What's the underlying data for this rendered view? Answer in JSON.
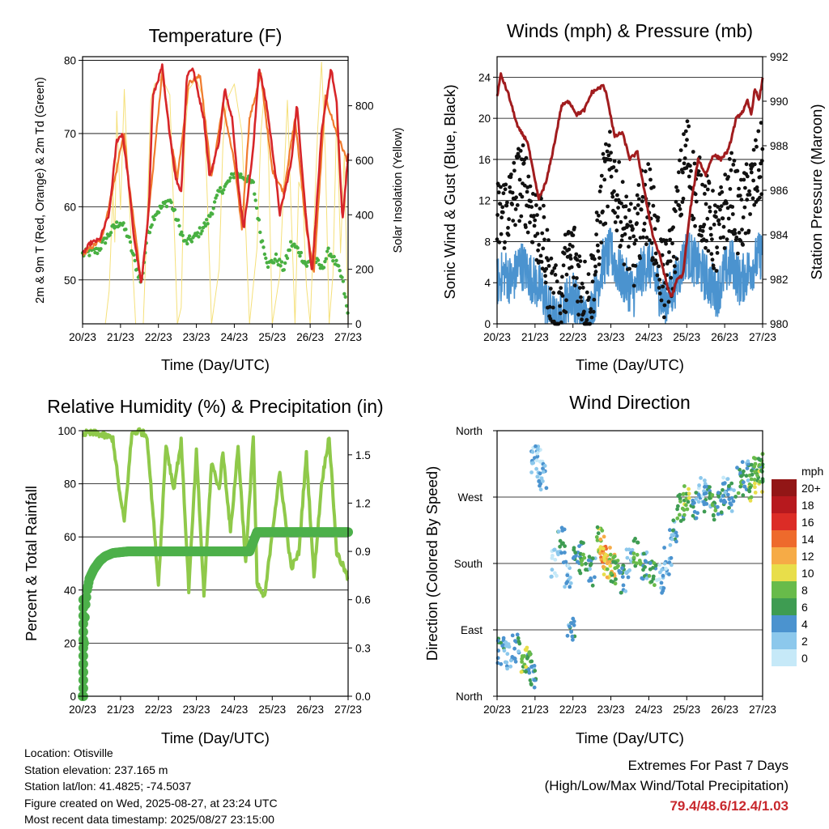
{
  "time_ticks": [
    "20/23",
    "21/23",
    "22/23",
    "23/23",
    "24/23",
    "25/23",
    "26/23",
    "27/23"
  ],
  "panels": {
    "temperature": {
      "title": "Temperature (F)",
      "xlabel": "Time (Day/UTC)",
      "ylabel": "2m & 9m T (Red, Orange) & 2m Td (Green)",
      "y2label": "Solar Insolation (Yellow)",
      "yticks": [
        "50",
        "60",
        "70",
        "80"
      ],
      "y2ticks": [
        "0",
        "200",
        "400",
        "600",
        "800"
      ]
    },
    "winds": {
      "title": "Winds (mph) & Pressure (mb)",
      "xlabel": "Time (Day/UTC)",
      "ylabel": "Sonic Wind & Gust (Blue, Black)",
      "y2label": "Station Pressure (Maroon)",
      "yticks": [
        "0",
        "4",
        "8",
        "12",
        "16",
        "20",
        "24"
      ],
      "y2ticks": [
        "980",
        "982",
        "984",
        "986",
        "988",
        "990",
        "992"
      ]
    },
    "humidity": {
      "title": "Relative Humidity (%) & Precipitation (in)",
      "xlabel": "Time (Day/UTC)",
      "ylabel": "Percent & Total Rainfall",
      "yticks": [
        "0",
        "20",
        "40",
        "60",
        "80",
        "100"
      ],
      "y2ticks": [
        "0.0",
        "0.3",
        "0.6",
        "0.9",
        "1.2",
        "1.5"
      ]
    },
    "direction": {
      "title": "Wind Direction",
      "xlabel": "Time (Day/UTC)",
      "ylabel": "Direction (Colored By Speed)",
      "yticks": [
        "North",
        "East",
        "South",
        "West",
        "North"
      ],
      "legend_title": "mph",
      "legend_labels": [
        "0",
        "2",
        "4",
        "6",
        "8",
        "10",
        "12",
        "14",
        "16",
        "18",
        "20+"
      ],
      "legend_colors": [
        "#c6e9f8",
        "#8cc8ec",
        "#4b93cf",
        "#3e9c52",
        "#68bb4a",
        "#e8de4a",
        "#f6ab46",
        "#ee6a2c",
        "#dc2c26",
        "#b7191e",
        "#921616"
      ]
    }
  },
  "info": {
    "location": "Location: Otisville",
    "elevation": "Station elevation: 237.165 m",
    "latlon": "Station lat/lon: 41.4825; -74.5037",
    "created": "Figure created on Wed, 2025-08-27, at 23:24 UTC",
    "recent": "Most recent data timestamp: 2025/08/27 23:15:00"
  },
  "extremes": {
    "title": "Extremes For Past 7 Days",
    "subtitle": "(High/Low/Max Wind/Total Precipitation)",
    "values": "79.4/48.6/12.4/1.03"
  },
  "chart_data": [
    {
      "type": "line",
      "title": "Temperature (F)",
      "xlabel": "Time (Day/UTC)",
      "ylabel": "2m & 9m T (Red, Orange) & 2m Td (Green)",
      "y2label": "Solar Insolation (Yellow)",
      "x_unit": "days since 20/23 UTC",
      "ylim": [
        44,
        80.5
      ],
      "y2lim": [
        0,
        980
      ],
      "series": [
        {
          "color": "#d7262a",
          "axis": "left",
          "x": [
            0,
            0.2,
            0.45,
            0.7,
            0.9,
            1.05,
            1.2,
            1.35,
            1.55,
            1.75,
            1.85,
            2.1,
            2.2,
            2.45,
            2.6,
            2.75,
            2.9,
            3.2,
            3.35,
            3.6,
            3.75,
            3.95,
            4.1,
            4.25,
            4.5,
            4.65,
            4.85,
            5.05,
            5.2,
            5.5,
            5.65,
            5.9,
            6.05,
            6.3,
            6.55,
            6.7,
            6.85,
            7.0
          ],
          "y": [
            53.5,
            55,
            55.5,
            59,
            69,
            70,
            64,
            56,
            49.3,
            60,
            75,
            79.2,
            74,
            64,
            62,
            78,
            79,
            72,
            64,
            69,
            76,
            72,
            63,
            57,
            68,
            79,
            74,
            66,
            59,
            66,
            74,
            58,
            51,
            70,
            79,
            74,
            58,
            67
          ]
        },
        {
          "color": "#f07b2d",
          "axis": "left",
          "x": [
            0,
            0.5,
            0.9,
            1.0,
            1.1,
            1.2,
            1.4,
            1.55,
            1.8,
            2.1,
            2.3,
            2.5,
            2.8,
            3.1,
            3.4,
            3.7,
            4.0,
            4.2,
            4.4,
            4.7,
            5.0,
            5.3,
            5.6,
            5.9,
            6.1,
            6.4,
            6.7,
            7.0
          ],
          "y": [
            53.5,
            55.5,
            65,
            68,
            70,
            64,
            56,
            49.5,
            62,
            78.5,
            70,
            64,
            77,
            78,
            64,
            74,
            66,
            57,
            72,
            78,
            65,
            62,
            72,
            57,
            51,
            75,
            70,
            66
          ]
        },
        {
          "color": "#49b042",
          "axis": "left",
          "dots": true,
          "x": [
            0,
            0.4,
            0.8,
            1.0,
            1.2,
            1.4,
            1.55,
            1.7,
            1.9,
            2.1,
            2.3,
            2.5,
            2.7,
            3.0,
            3.3,
            3.6,
            3.8,
            4.0,
            4.3,
            4.5,
            4.7,
            4.9,
            5.1,
            5.3,
            5.5,
            5.7,
            5.9,
            6.1,
            6.3,
            6.5,
            6.7,
            6.85,
            7.0
          ],
          "y": [
            53.5,
            54,
            57,
            58,
            56,
            52,
            49.5,
            56,
            59,
            60,
            61,
            58,
            55,
            56,
            58,
            62,
            63,
            64.5,
            64,
            63,
            56,
            52,
            53,
            51.5,
            55,
            54,
            52,
            53,
            51.5,
            54,
            52,
            50,
            45
          ]
        },
        {
          "color": "#f5e07a",
          "axis": "right",
          "x": [
            0.6,
            0.7,
            0.8,
            0.85,
            0.9,
            1.0,
            1.1,
            1.2,
            1.3,
            1.4,
            1.6,
            1.7,
            1.8,
            1.9,
            2.1,
            2.3,
            2.5,
            2.6,
            2.7,
            2.8,
            3.0,
            3.2,
            3.4,
            3.6,
            3.7,
            3.8,
            4.0,
            4.2,
            4.4,
            4.6,
            4.7,
            4.8,
            4.9,
            5.0,
            5.2,
            5.4,
            5.6,
            5.7,
            5.8,
            5.9,
            6.0,
            6.2,
            6.3,
            6.4,
            6.5,
            6.6,
            6.7,
            6.8,
            6.9,
            7.0
          ],
          "y": [
            0,
            120,
            480,
            300,
            780,
            420,
            860,
            520,
            260,
            0,
            0,
            380,
            820,
            880,
            900,
            840,
            0,
            60,
            700,
            860,
            900,
            820,
            0,
            200,
            660,
            820,
            880,
            700,
            0,
            280,
            700,
            860,
            620,
            0,
            180,
            820,
            0,
            520,
            480,
            140,
            0,
            720,
            960,
            620,
            0,
            180,
            780,
            260,
            620,
            0
          ]
        }
      ]
    },
    {
      "type": "line",
      "title": "Winds (mph) & Pressure (mb)",
      "xlabel": "Time (Day/UTC)",
      "ylabel": "Sonic Wind & Gust (Blue, Black)",
      "y2label": "Station Pressure (Maroon)",
      "x_unit": "days since 20/23 UTC",
      "ylim": [
        0,
        26
      ],
      "y2lim": [
        980,
        992
      ],
      "series": [
        {
          "color": "#4b93cf",
          "axis": "left",
          "x": [
            0,
            0.2,
            0.4,
            0.6,
            0.8,
            1.0,
            1.2,
            1.4,
            1.6,
            1.8,
            2.0,
            2.2,
            2.4,
            2.6,
            2.8,
            3.0,
            3.2,
            3.4,
            3.6,
            3.8,
            4.0,
            4.2,
            4.4,
            4.6,
            4.8,
            5.0,
            5.2,
            5.4,
            5.6,
            5.8,
            6.0,
            6.2,
            6.4,
            6.6,
            6.8,
            7.0
          ],
          "y": [
            4,
            5,
            4,
            6,
            5,
            4,
            3,
            1,
            0,
            2,
            3,
            1,
            0,
            3,
            6,
            7,
            5,
            4,
            3,
            5,
            6,
            4,
            2,
            3,
            5,
            7,
            6,
            5,
            4,
            3,
            5,
            6,
            4,
            5,
            6,
            7
          ]
        },
        {
          "color": "#111111",
          "axis": "left",
          "dots": true,
          "x": [
            0,
            0.2,
            0.4,
            0.6,
            0.8,
            1.0,
            1.2,
            1.4,
            1.6,
            1.8,
            2.0,
            2.2,
            2.4,
            2.6,
            2.8,
            3.0,
            3.2,
            3.4,
            3.6,
            3.8,
            4.0,
            4.2,
            4.4,
            4.6,
            4.8,
            5.0,
            5.2,
            5.4,
            5.6,
            5.8,
            6.0,
            6.2,
            6.4,
            6.6,
            6.8,
            7.0
          ],
          "y": [
            10,
            11,
            12,
            14,
            13,
            10,
            8,
            4,
            1,
            5,
            7,
            4,
            2,
            6,
            13,
            15,
            12,
            9,
            7,
            11,
            12,
            8,
            4,
            6,
            12,
            17,
            13,
            12,
            10,
            8,
            11,
            13,
            10,
            12,
            14,
            16
          ]
        },
        {
          "color": "#a11c1e",
          "axis": "right",
          "x": [
            0,
            0.1,
            0.3,
            0.55,
            0.8,
            1.0,
            1.1,
            1.3,
            1.5,
            1.7,
            1.9,
            2.1,
            2.3,
            2.5,
            2.8,
            2.9,
            3.1,
            3.3,
            3.5,
            3.7,
            3.9,
            4.1,
            4.3,
            4.5,
            4.6,
            4.75,
            4.9,
            5.1,
            5.3,
            5.5,
            5.7,
            5.9,
            6.1,
            6.3,
            6.5,
            6.6,
            6.7,
            6.8,
            6.9,
            7.0
          ],
          "y": [
            990.2,
            991.2,
            990.3,
            988.8,
            988.2,
            986.4,
            985.6,
            986.4,
            988,
            989.8,
            990,
            989.4,
            989.6,
            990.4,
            990.7,
            990.2,
            988.4,
            988.6,
            987.4,
            987.7,
            985.8,
            984,
            983,
            981.6,
            981.2,
            982,
            982.2,
            985.2,
            987.4,
            986.7,
            987.6,
            987.4,
            987.8,
            989.2,
            989.6,
            990,
            989.4,
            990.6,
            990,
            991
          ]
        }
      ]
    },
    {
      "type": "line",
      "title": "Relative Humidity (%) & Precipitation (in)",
      "xlabel": "Time (Day/UTC)",
      "ylabel": "Percent & Total Rainfall",
      "x_unit": "days since 20/23 UTC",
      "ylim": [
        0,
        100
      ],
      "y2lim": [
        0,
        1.65
      ],
      "series": [
        {
          "color": "#8fc94a",
          "axis": "left",
          "x": [
            0,
            0.4,
            0.8,
            1.0,
            1.1,
            1.3,
            1.5,
            1.7,
            2.0,
            2.2,
            2.4,
            2.6,
            2.8,
            3.0,
            3.2,
            3.4,
            3.6,
            3.7,
            3.9,
            4.1,
            4.3,
            4.5,
            4.6,
            4.8,
            5.0,
            5.2,
            5.5,
            5.7,
            5.9,
            6.1,
            6.3,
            6.5,
            6.7,
            6.9,
            7.0
          ],
          "y": [
            99,
            99,
            97,
            74,
            66,
            99,
            100,
            98,
            42,
            95,
            78,
            96,
            40,
            92,
            38,
            88,
            78,
            92,
            62,
            94,
            50,
            98,
            42,
            37,
            62,
            84,
            48,
            54,
            91,
            45,
            80,
            98,
            54,
            48,
            44
          ]
        },
        {
          "color": "#4db04a",
          "axis": "right",
          "dots": true,
          "x": [
            0,
            0.01,
            0.02,
            0.03,
            0.04,
            0.05,
            0.08,
            0.12,
            0.18,
            0.3,
            0.45,
            0.6,
            0.8,
            1.2,
            1.8,
            2.4,
            3.0,
            3.6,
            4.2,
            4.4,
            4.6,
            5.2,
            5.8,
            6.4,
            7.0
          ],
          "y": [
            0,
            0.05,
            0.15,
            0.25,
            0.33,
            0.45,
            0.57,
            0.66,
            0.73,
            0.79,
            0.84,
            0.87,
            0.89,
            0.9,
            0.9,
            0.9,
            0.9,
            0.9,
            0.9,
            0.9,
            1.02,
            1.02,
            1.02,
            1.02,
            1.02
          ]
        }
      ]
    },
    {
      "type": "scatter",
      "title": "Wind Direction",
      "xlabel": "Time (Day/UTC)",
      "ylabel": "Direction (Colored By Speed)",
      "x_unit": "days since 20/23 UTC",
      "ylim": [
        0,
        360
      ],
      "y_ticklabels": [
        "North",
        "East",
        "South",
        "West",
        "North"
      ],
      "color_scale": "speed (mph)",
      "points": [
        {
          "x": 0.1,
          "y": 60,
          "speed": 4
        },
        {
          "x": 0.3,
          "y": 55,
          "speed": 2
        },
        {
          "x": 0.5,
          "y": 65,
          "speed": 4
        },
        {
          "x": 0.7,
          "y": 50,
          "speed": 8
        },
        {
          "x": 0.85,
          "y": 40,
          "speed": 6
        },
        {
          "x": 0.95,
          "y": 30,
          "speed": 4
        },
        {
          "x": 1.0,
          "y": 320,
          "speed": 2
        },
        {
          "x": 1.1,
          "y": 315,
          "speed": 0
        },
        {
          "x": 1.2,
          "y": 300,
          "speed": 2
        },
        {
          "x": 1.5,
          "y": 180,
          "speed": 0
        },
        {
          "x": 1.7,
          "y": 210,
          "speed": 4
        },
        {
          "x": 1.85,
          "y": 165,
          "speed": 2
        },
        {
          "x": 1.95,
          "y": 90,
          "speed": 4
        },
        {
          "x": 2.1,
          "y": 185,
          "speed": 4
        },
        {
          "x": 2.3,
          "y": 190,
          "speed": 6
        },
        {
          "x": 2.5,
          "y": 170,
          "speed": 4
        },
        {
          "x": 2.7,
          "y": 215,
          "speed": 8
        },
        {
          "x": 2.8,
          "y": 200,
          "speed": 12
        },
        {
          "x": 2.9,
          "y": 185,
          "speed": 10
        },
        {
          "x": 3.0,
          "y": 175,
          "speed": 10
        },
        {
          "x": 3.1,
          "y": 170,
          "speed": 6
        },
        {
          "x": 3.3,
          "y": 160,
          "speed": 4
        },
        {
          "x": 3.5,
          "y": 180,
          "speed": 2
        },
        {
          "x": 3.7,
          "y": 195,
          "speed": 6
        },
        {
          "x": 3.9,
          "y": 175,
          "speed": 4
        },
        {
          "x": 4.1,
          "y": 165,
          "speed": 6
        },
        {
          "x": 4.3,
          "y": 160,
          "speed": 2
        },
        {
          "x": 4.5,
          "y": 185,
          "speed": 2
        },
        {
          "x": 4.65,
          "y": 225,
          "speed": 4
        },
        {
          "x": 4.85,
          "y": 255,
          "speed": 6
        },
        {
          "x": 5.0,
          "y": 270,
          "speed": 8
        },
        {
          "x": 5.2,
          "y": 260,
          "speed": 4
        },
        {
          "x": 5.4,
          "y": 280,
          "speed": 2
        },
        {
          "x": 5.55,
          "y": 265,
          "speed": 4
        },
        {
          "x": 5.7,
          "y": 255,
          "speed": 6
        },
        {
          "x": 5.9,
          "y": 265,
          "speed": 4
        },
        {
          "x": 6.05,
          "y": 280,
          "speed": 2
        },
        {
          "x": 6.2,
          "y": 270,
          "speed": 4
        },
        {
          "x": 6.4,
          "y": 290,
          "speed": 6
        },
        {
          "x": 6.55,
          "y": 300,
          "speed": 4
        },
        {
          "x": 6.7,
          "y": 285,
          "speed": 8
        },
        {
          "x": 6.8,
          "y": 305,
          "speed": 6
        },
        {
          "x": 6.9,
          "y": 295,
          "speed": 8
        },
        {
          "x": 7.0,
          "y": 310,
          "speed": 6
        }
      ]
    }
  ]
}
